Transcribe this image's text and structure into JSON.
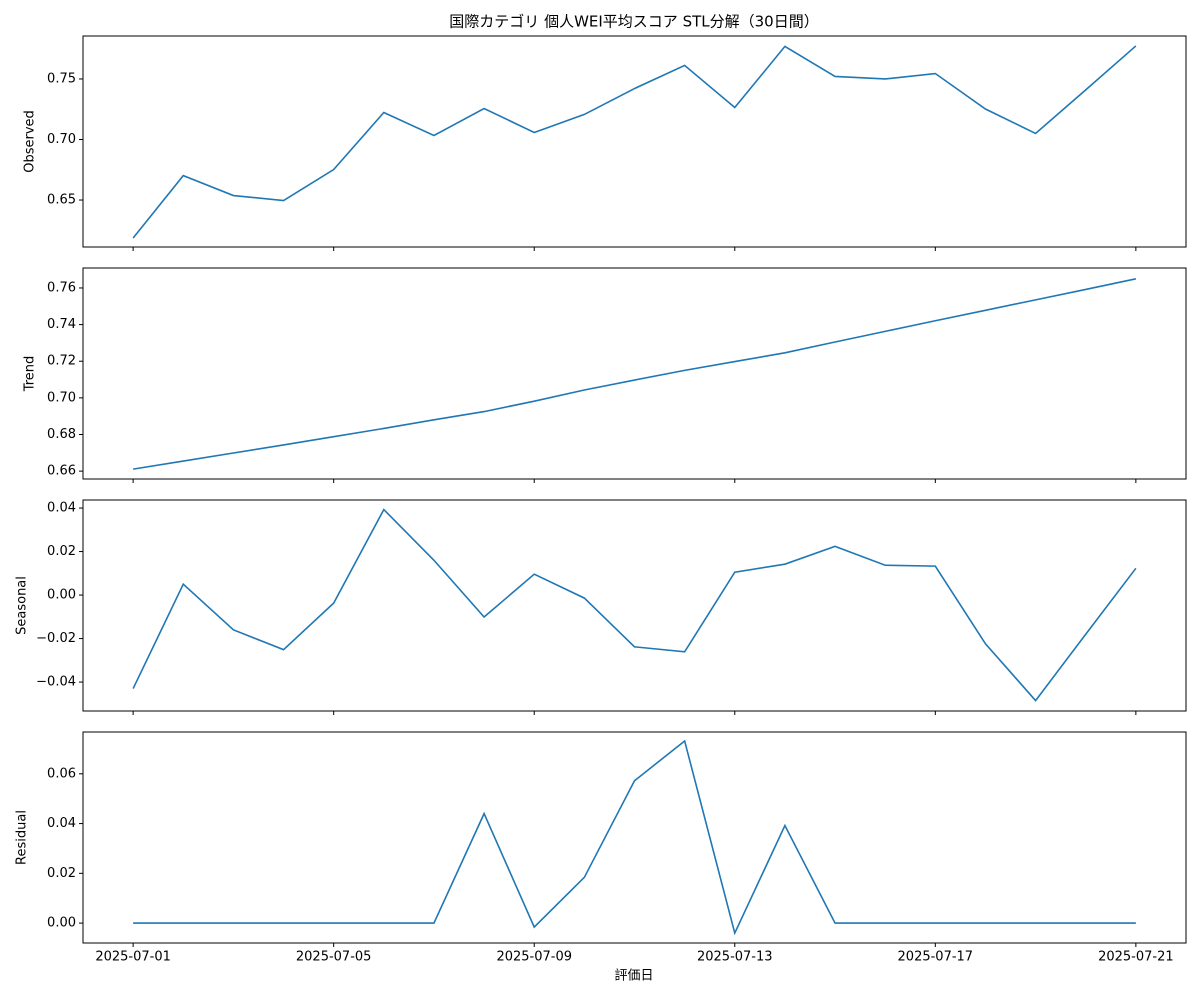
{
  "title": "国際カテゴリ 個人WEI平均スコア STL分解（30日間）",
  "x_label": "評価日",
  "chart_data": [
    {
      "type": "line",
      "y_label": "Observed",
      "color": "#1f77b4",
      "x": [
        "2025-07-01",
        "2025-07-02",
        "2025-07-03",
        "2025-07-04",
        "2025-07-05",
        "2025-07-06",
        "2025-07-07",
        "2025-07-08",
        "2025-07-09",
        "2025-07-10",
        "2025-07-11",
        "2025-07-12",
        "2025-07-13",
        "2025-07-14",
        "2025-07-15",
        "2025-07-16",
        "2025-07-17",
        "2025-07-18",
        "2025-07-19",
        "2025-07-20",
        "2025-07-21"
      ],
      "values": [
        0.6186,
        0.6702,
        0.6537,
        0.6496,
        0.6752,
        0.7223,
        0.7033,
        0.7256,
        0.7058,
        0.7207,
        0.7421,
        0.7612,
        0.7264,
        0.7769,
        0.7521,
        0.75,
        0.7545,
        0.7252,
        0.705,
        0.741,
        0.7773
      ],
      "xlim": [
        "2025-06-30",
        "2025-07-22"
      ],
      "xticks": [
        "2025-07-01",
        "2025-07-05",
        "2025-07-09",
        "2025-07-13",
        "2025-07-17",
        "2025-07-21"
      ],
      "ylim": [
        0.6112,
        0.7855
      ],
      "yticks": [
        0.65,
        {
          "value": 0.7,
          "label": "0.70"
        },
        0.75
      ]
    },
    {
      "type": "line",
      "y_label": "Trend",
      "color": "#1f77b4",
      "x": [
        "2025-07-01",
        "2025-07-02",
        "2025-07-03",
        "2025-07-04",
        "2025-07-05",
        "2025-07-06",
        "2025-07-07",
        "2025-07-08",
        "2025-07-09",
        "2025-07-10",
        "2025-07-11",
        "2025-07-12",
        "2025-07-13",
        "2025-07-14",
        "2025-07-15",
        "2025-07-16",
        "2025-07-17",
        "2025-07-18",
        "2025-07-19",
        "2025-07-20",
        "2025-07-21"
      ],
      "values": [
        0.6611,
        0.6655,
        0.6699,
        0.6743,
        0.6788,
        0.6833,
        0.688,
        0.6925,
        0.6982,
        0.7043,
        0.7097,
        0.715,
        0.7198,
        0.7246,
        0.7305,
        0.7363,
        0.7421,
        0.7478,
        0.7535,
        0.7592,
        0.765
      ],
      "xlim": [
        "2025-06-30",
        "2025-07-22"
      ],
      "xticks": [
        "2025-07-01",
        "2025-07-05",
        "2025-07-09",
        "2025-07-13",
        "2025-07-17",
        "2025-07-21"
      ],
      "ylim": [
        0.6557,
        0.7709
      ],
      "yticks": [
        0.66,
        0.68,
        {
          "value": 0.7,
          "label": "0.70"
        },
        0.72,
        0.74,
        0.76
      ]
    },
    {
      "type": "line",
      "y_label": "Seasonal",
      "color": "#1f77b4",
      "x": [
        "2025-07-01",
        "2025-07-02",
        "2025-07-03",
        "2025-07-04",
        "2025-07-05",
        "2025-07-06",
        "2025-07-07",
        "2025-07-08",
        "2025-07-09",
        "2025-07-10",
        "2025-07-11",
        "2025-07-12",
        "2025-07-13",
        "2025-07-14",
        "2025-07-15",
        "2025-07-16",
        "2025-07-17",
        "2025-07-18",
        "2025-07-19",
        "2025-07-20",
        "2025-07-21"
      ],
      "values": [
        -0.043,
        0.005,
        -0.016,
        -0.0251,
        -0.0037,
        0.0393,
        0.016,
        -0.0101,
        0.0096,
        -0.0014,
        -0.0238,
        -0.0261,
        0.0105,
        0.0142,
        0.0224,
        0.0137,
        0.0133,
        -0.0224,
        -0.0485,
        -0.018,
        0.0123
      ],
      "xlim": [
        "2025-06-30",
        "2025-07-22"
      ],
      "xticks": [
        "2025-07-01",
        "2025-07-05",
        "2025-07-09",
        "2025-07-13",
        "2025-07-17",
        "2025-07-21"
      ],
      "ylim": [
        -0.0533,
        0.0437
      ],
      "yticks": [
        {
          "value": -0.04,
          "label": "−0.04"
        },
        {
          "value": -0.02,
          "label": "−0.02"
        },
        {
          "value": 0,
          "label": "0.00"
        },
        0.02,
        0.04
      ]
    },
    {
      "type": "line",
      "y_label": "Residual",
      "color": "#1f77b4",
      "x": [
        "2025-07-01",
        "2025-07-02",
        "2025-07-03",
        "2025-07-04",
        "2025-07-05",
        "2025-07-06",
        "2025-07-07",
        "2025-07-08",
        "2025-07-09",
        "2025-07-10",
        "2025-07-11",
        "2025-07-12",
        "2025-07-13",
        "2025-07-14",
        "2025-07-15",
        "2025-07-16",
        "2025-07-17",
        "2025-07-18",
        "2025-07-19",
        "2025-07-20",
        "2025-07-21"
      ],
      "values": [
        0,
        0,
        0,
        0,
        0,
        0,
        0,
        0.044,
        -0.0016,
        0.0184,
        0.0572,
        0.0732,
        -0.004,
        0.0392,
        0,
        0,
        0,
        0,
        0,
        0,
        0
      ],
      "xlim": [
        "2025-06-30",
        "2025-07-22"
      ],
      "xticks": [
        "2025-07-01",
        "2025-07-05",
        "2025-07-09",
        "2025-07-13",
        "2025-07-17",
        "2025-07-21"
      ],
      "ylim": [
        -0.008,
        0.0768
      ],
      "yticks": [
        {
          "value": 0,
          "label": "0.00"
        },
        0.02,
        0.04,
        0.06
      ]
    }
  ]
}
